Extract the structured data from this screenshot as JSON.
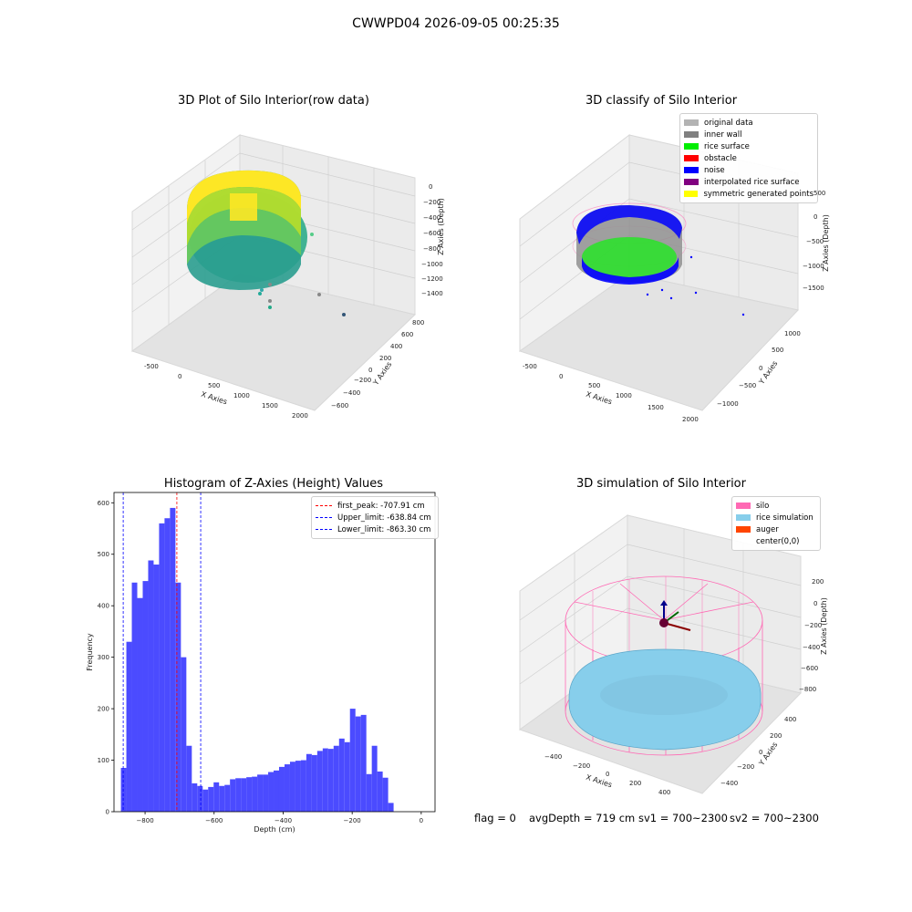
{
  "suptitle": "CWWPD04 2026-09-05 00:25:35",
  "panels": {
    "raw": {
      "title": "3D Plot of Silo Interior(row data)",
      "xlabel": "X Axies",
      "ylabel": "Y Axies",
      "zlabel": "Z Axies (Depth)",
      "xticks": [
        "-500",
        "0",
        "500",
        "1000",
        "1500",
        "2000"
      ],
      "yticks": [
        "800",
        "600",
        "400",
        "200",
        "0",
        "−200",
        "−400",
        "−600"
      ],
      "zticks": [
        "0",
        "−200",
        "−400",
        "−600",
        "−800",
        "−1000",
        "−1200",
        "−1400"
      ]
    },
    "classify": {
      "title": "3D classify of Silo Interior",
      "xlabel": "X Axies",
      "ylabel": "Y Axies",
      "zlabel": "Z Axies (Depth)",
      "xticks": [
        "-500",
        "0",
        "500",
        "1000",
        "1500",
        "2000"
      ],
      "yticks": [
        "1000",
        "500",
        "0",
        "−500",
        "−1000"
      ],
      "zticks": [
        "500",
        "0",
        "−500",
        "−1000",
        "−1500"
      ],
      "legend": [
        {
          "label": "original data",
          "color": "#b3b3b3"
        },
        {
          "label": "inner wall",
          "color": "#808080"
        },
        {
          "label": "rice surface",
          "color": "#00ee00"
        },
        {
          "label": "obstacle",
          "color": "#ff0000"
        },
        {
          "label": "noise",
          "color": "#0000ff"
        },
        {
          "label": "interpolated rice surface",
          "color": "#800080"
        },
        {
          "label": "symmetric generated points",
          "color": "#ffff00"
        }
      ]
    },
    "simulation": {
      "title": "3D simulation of Silo Interior",
      "xlabel": "X Axies",
      "ylabel": "Y Axies",
      "zlabel": "Z Axies (Depth)",
      "xticks": [
        "−400",
        "−200",
        "0",
        "200",
        "400"
      ],
      "yticks": [
        "400",
        "200",
        "0",
        "−200",
        "−400"
      ],
      "zticks": [
        "200",
        "0",
        "−200",
        "−400",
        "−600",
        "−800"
      ],
      "legend": [
        {
          "label": "silo",
          "color": "#ff69b4"
        },
        {
          "label": "rice simulation",
          "color": "#87ceeb"
        },
        {
          "label": "auger",
          "color": "#ff4500"
        },
        {
          "label": "center(0,0)",
          "color": ""
        }
      ]
    }
  },
  "footer": {
    "flag": "flag = 0",
    "avg_depth": "avgDepth = 719 cm",
    "sv1": "sv1 = 700~2300",
    "sv2": "sv2 = 700~2300"
  },
  "colors": {
    "histogram_bar": "#4b4bff",
    "first_peak": "#ff0000",
    "limits": "#0000ff"
  },
  "chart_data": {
    "type": "bar",
    "title": "Histogram of Z-Axies (Height) Values",
    "xlabel": "Depth (cm)",
    "ylabel": "Frequency",
    "xlim": [
      -890,
      40
    ],
    "ylim": [
      0,
      620
    ],
    "xticks": [
      -800,
      -600,
      -400,
      -200,
      0
    ],
    "yticks": [
      0,
      100,
      200,
      300,
      400,
      500,
      600
    ],
    "bin_start": -870,
    "bin_width": 15.8,
    "values": [
      85,
      330,
      445,
      415,
      448,
      488,
      480,
      560,
      570,
      590,
      445,
      300,
      128,
      55,
      50,
      43,
      48,
      57,
      50,
      52,
      63,
      65,
      65,
      67,
      68,
      72,
      72,
      77,
      80,
      87,
      92,
      97,
      99,
      100,
      112,
      110,
      118,
      123,
      122,
      128,
      142,
      135,
      200,
      185,
      188,
      73,
      128,
      78,
      66,
      17
    ],
    "lines": [
      {
        "name": "first_peak",
        "label": "first_peak: -707.91 cm",
        "x": -707.91,
        "color": "#ff0000"
      },
      {
        "name": "upper_limit",
        "label": "Upper_limit: -638.84 cm",
        "x": -638.84,
        "color": "#0000ff"
      },
      {
        "name": "lower_limit",
        "label": "Lower_limit: -863.30 cm",
        "x": -863.3,
        "color": "#0000ff"
      }
    ],
    "legend_position": "top-right"
  }
}
